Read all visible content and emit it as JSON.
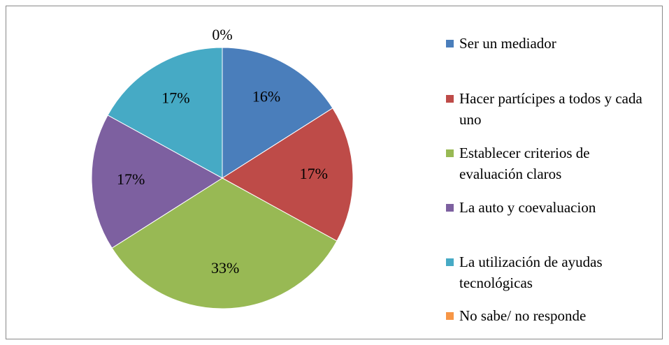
{
  "chart_data": {
    "type": "pie",
    "categories": [
      "Ser un mediador",
      "Hacer partícipes a todos y cada uno",
      "Establecer criterios de evaluación claros",
      "La auto y coevaluacion",
      "La utilización de ayudas tecnológicas",
      "No sabe/ no responde"
    ],
    "values": [
      16,
      17,
      33,
      17,
      17,
      0
    ],
    "value_labels": [
      "16%",
      "17%",
      "33%",
      "17%",
      "17%",
      "0%"
    ],
    "colors": [
      "#4a7ebb",
      "#be4b48",
      "#98b954",
      "#7d60a0",
      "#46aac5",
      "#f79646"
    ]
  }
}
